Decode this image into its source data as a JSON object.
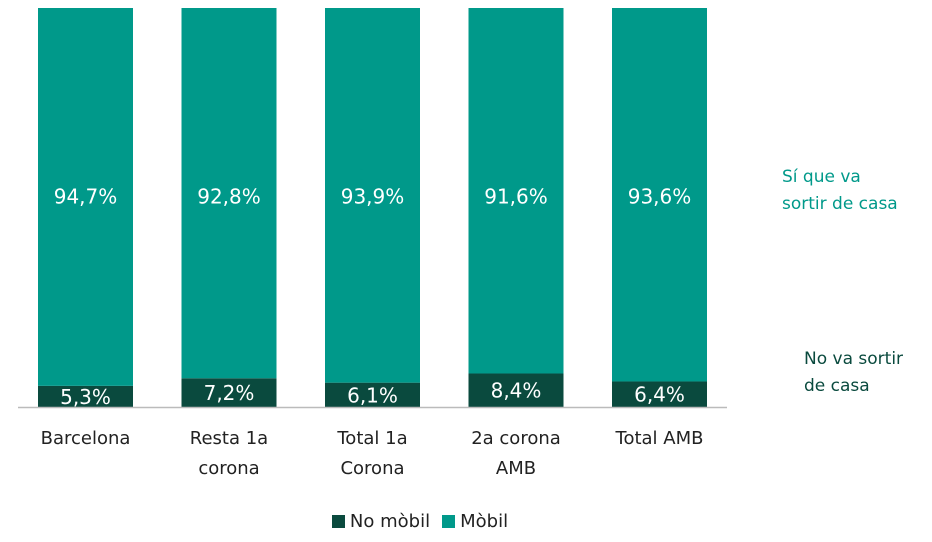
{
  "chart_data": {
    "type": "stacked_bar",
    "categories": [
      "Barcelona",
      "Resta 1a\ncorona",
      "Total 1a\nCorona",
      "2a corona\nAMB",
      "Total AMB"
    ],
    "series": [
      {
        "name": "No mòbil",
        "color": "#0a4a3e",
        "values": [
          5.3,
          7.2,
          6.1,
          8.4,
          6.4
        ],
        "value_labels": [
          "5,3%",
          "7,2%",
          "6,1%",
          "8,4%",
          "6,4%"
        ]
      },
      {
        "name": "Mòbil",
        "color": "#00998a",
        "values": [
          94.7,
          92.8,
          93.9,
          91.6,
          93.6
        ],
        "value_labels": [
          "94,7%",
          "92,8%",
          "93,9%",
          "91,6%",
          "93,6%"
        ]
      }
    ],
    "ylim": [
      0,
      100
    ],
    "annotations": [
      {
        "text": "Sí que va\nsortir de casa",
        "color": "#00998a"
      },
      {
        "text": "No va sortir\nde casa",
        "color": "#0a4a3e"
      }
    ],
    "legend": "bottom"
  }
}
